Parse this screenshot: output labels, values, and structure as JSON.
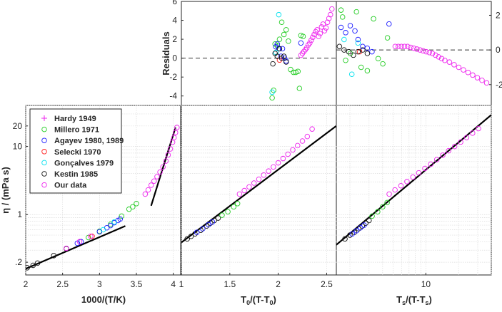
{
  "chart_data": [
    {
      "panel": "residuals-left",
      "type": "scatter",
      "ylabel": "Residuals",
      "ylim": [
        -5,
        6
      ],
      "xlim": [
        2.0,
        4.1
      ],
      "yticks": [
        -4,
        -2,
        0,
        2,
        4,
        6
      ],
      "series": [
        {
          "name": "Millero 1971",
          "color": "#22cc22",
          "x": [
            3.23,
            3.25,
            3.27,
            3.3,
            3.33,
            3.36,
            3.39,
            3.42,
            3.45,
            3.48,
            3.52,
            3.55,
            3.58,
            3.6,
            3.62,
            3.65
          ],
          "y": [
            -4.2,
            -3.4,
            1.5,
            1.3,
            2.0,
            3.8,
            2.5,
            3.0,
            1.8,
            -1.2,
            -1.5,
            -1.5,
            -1.4,
            -3.2,
            2.4,
            2.3
          ]
        },
        {
          "name": "Agayev 1980, 1989",
          "color": "#1a1aff",
          "x": [
            3.28,
            3.3,
            3.32,
            3.35,
            3.37,
            3.4,
            3.42,
            3.62
          ],
          "y": [
            1.2,
            1.5,
            1.0,
            0.2,
            1.0,
            0.0,
            -0.3,
            1.6
          ]
        },
        {
          "name": "Selecki 1970",
          "color": "#ff1a1a",
          "x": [
            3.33
          ],
          "y": [
            -0.2
          ]
        },
        {
          "name": "Gonçalves 1979",
          "color": "#00e0ee",
          "x": [
            3.23,
            3.28,
            3.32
          ],
          "y": [
            -3.6,
            0.6,
            4.6
          ]
        },
        {
          "name": "Kestin 1985",
          "color": "#111111",
          "x": [
            3.24,
            3.27,
            3.3,
            3.33,
            3.36,
            3.39,
            3.42
          ],
          "y": [
            -0.6,
            0.5,
            0.2,
            1.0,
            0.0,
            0.2,
            -0.4
          ]
        },
        {
          "name": "Our data",
          "color": "#ee22ee",
          "x": [
            3.62,
            3.64,
            3.66,
            3.68,
            3.7,
            3.72,
            3.74,
            3.76,
            3.78,
            3.8,
            3.82,
            3.84,
            3.86,
            3.88,
            3.9,
            3.92,
            3.94,
            3.96,
            3.98,
            4.0,
            4.02,
            4.04
          ],
          "y": [
            0.3,
            0.5,
            0.7,
            0.9,
            1.1,
            1.4,
            1.6,
            1.9,
            2.2,
            2.5,
            2.8,
            3.0,
            2.3,
            2.6,
            3.3,
            3.6,
            2.9,
            3.2,
            3.8,
            4.2,
            4.6,
            5.2
          ]
        }
      ]
    },
    {
      "panel": "residuals-right",
      "type": "scatter",
      "ylim": [
        -3.2,
        2.8
      ],
      "xlim": [
        0,
        1
      ],
      "yticks": [
        -2,
        0,
        2
      ],
      "series": [
        {
          "name": "Millero 1971",
          "color": "#22cc22",
          "x": [
            0.03,
            0.04,
            0.06,
            0.09,
            0.13,
            0.16,
            0.2,
            0.24,
            0.27,
            0.3,
            0.33
          ],
          "y": [
            2.3,
            1.9,
            -0.6,
            -0.2,
            2.2,
            -1.0,
            -1.2,
            1.8,
            -0.5,
            -0.8,
            0.7
          ]
        },
        {
          "name": "Agayev 1980, 1989",
          "color": "#1a1aff",
          "x": [
            0.03,
            0.06,
            0.09,
            0.12,
            0.14,
            0.17,
            0.2,
            0.23,
            0.34
          ],
          "y": [
            1.3,
            1.0,
            1.4,
            1.1,
            0.6,
            0.2,
            0.1,
            -0.1,
            1.5
          ]
        },
        {
          "name": "Selecki 1970",
          "color": "#ff1a1a",
          "x": [
            0.15
          ],
          "y": [
            -0.1
          ]
        },
        {
          "name": "Gonçalves 1979",
          "color": "#00e0ee",
          "x": [
            0.05,
            0.1,
            0.14
          ],
          "y": [
            0.6,
            -1.4,
            0.4
          ]
        },
        {
          "name": "Kestin 1985",
          "color": "#111111",
          "x": [
            0.02,
            0.05,
            0.08,
            0.11,
            0.14,
            0.17,
            0.2
          ],
          "y": [
            0.2,
            0.0,
            -0.1,
            -0.3,
            -0.1,
            0.0,
            -0.2
          ]
        },
        {
          "name": "Our data",
          "color": "#ee22ee",
          "x": [
            0.38,
            0.4,
            0.42,
            0.44,
            0.46,
            0.48,
            0.5,
            0.52,
            0.54,
            0.56,
            0.58,
            0.6,
            0.62,
            0.64,
            0.66,
            0.68,
            0.7,
            0.73,
            0.76,
            0.79,
            0.82,
            0.85,
            0.88,
            0.91,
            0.94,
            0.97
          ],
          "y": [
            0.2,
            0.2,
            0.2,
            0.2,
            0.2,
            0.15,
            0.1,
            0.05,
            0.0,
            -0.05,
            -0.1,
            -0.15,
            -0.2,
            -0.3,
            -0.4,
            -0.5,
            -0.6,
            -0.7,
            -0.85,
            -1.0,
            -1.15,
            -1.3,
            -1.45,
            -1.6,
            -1.75,
            -1.9
          ]
        }
      ]
    },
    {
      "panel": "viscosity-arrhenius",
      "type": "scatter",
      "xlabel": "1000/(T/K)",
      "ylabel": "η / (mPa s)",
      "yscale": "log",
      "xlim": [
        2.0,
        4.1
      ],
      "ylim": [
        0.13,
        40
      ],
      "xticks": [
        2,
        2.5,
        3,
        3.5,
        4
      ],
      "xtick_labels": [
        "2",
        "2.5",
        "3",
        "3.5",
        "4"
      ],
      "yticks": [
        0.2,
        1,
        10,
        20
      ],
      "ytick_labels": [
        ".2",
        "1",
        "10",
        "20"
      ],
      "fit_lines": [
        {
          "x": [
            2.0,
            3.35
          ],
          "y": [
            0.16,
            0.68
          ]
        },
        {
          "x": [
            3.7,
            4.03
          ],
          "y": [
            1.35,
            19.0
          ]
        }
      ],
      "series": [
        {
          "name": "Kestin 1985",
          "color": "#111111",
          "x": [
            2.02,
            2.1,
            2.16,
            2.38,
            2.55
          ],
          "y": [
            0.166,
            0.18,
            0.194,
            0.25,
            0.316
          ]
        },
        {
          "name": "Millero 1971",
          "color": "#22cc22",
          "x": [
            2.85,
            3.0,
            3.15,
            3.3,
            3.4,
            3.45,
            3.5
          ],
          "y": [
            0.46,
            0.57,
            0.72,
            0.95,
            1.2,
            1.3,
            1.45
          ]
        },
        {
          "name": "Agayev 1980, 1989",
          "color": "#1a1aff",
          "x": [
            2.7,
            2.75,
            3.0,
            3.1,
            3.15,
            3.2,
            3.25,
            3.28
          ],
          "y": [
            0.38,
            0.4,
            0.56,
            0.64,
            0.69,
            0.76,
            0.82,
            0.86
          ]
        },
        {
          "name": "Selecki 1970",
          "color": "#ff1a1a",
          "x": [
            2.9
          ],
          "y": [
            0.48
          ]
        },
        {
          "name": "Gonçalves 1979",
          "color": "#00e0ee",
          "x": [
            3.05,
            3.2
          ],
          "y": [
            0.6,
            0.78
          ]
        },
        {
          "name": "Our data",
          "color": "#ee22ee",
          "x": [
            2.55,
            2.73,
            2.88,
            3.62,
            3.66,
            3.7,
            3.74,
            3.78,
            3.82,
            3.86,
            3.9,
            3.93,
            3.96,
            3.99,
            4.01,
            4.03,
            4.05
          ],
          "y": [
            0.32,
            0.4,
            0.48,
            2.0,
            2.3,
            2.7,
            3.1,
            3.6,
            4.2,
            5.0,
            6.1,
            7.5,
            9.2,
            11.5,
            13.5,
            16.0,
            19.0
          ]
        }
      ],
      "legend": {
        "placement": "top-left",
        "entries": [
          {
            "label": "Hardy 1949",
            "color": "#ee22ee",
            "marker": "+"
          },
          {
            "label": "Millero 1971",
            "color": "#22cc22",
            "marker": "o"
          },
          {
            "label": "Agayev 1980, 1989",
            "color": "#1a1aff",
            "marker": "o"
          },
          {
            "label": "Selecki 1970",
            "color": "#ff1a1a",
            "marker": "o"
          },
          {
            "label": "Gonçalves 1979",
            "color": "#00e0ee",
            "marker": "o"
          },
          {
            "label": "Kestin 1985",
            "color": "#111111",
            "marker": "o"
          },
          {
            "label": "Our data",
            "color": "#ee22ee",
            "marker": "o"
          }
        ]
      }
    },
    {
      "panel": "viscosity-t0",
      "type": "scatter",
      "xlabel": "T0/(T-T0)",
      "xlabel_parts": {
        "base": "T",
        "sub": "0",
        "mid": "/(T-T",
        "sub2": "0",
        "end": ")"
      },
      "xlim": [
        1.0,
        2.6
      ],
      "yscale": "log",
      "ylim": [
        0.13,
        40
      ],
      "xticks": [
        1,
        1.5,
        2,
        2.5
      ],
      "xtick_labels": [
        "1",
        "1.5",
        "2",
        "2.5"
      ],
      "fit_lines": [
        {
          "x": [
            1.0,
            2.6
          ],
          "y": [
            0.39,
            20.0
          ]
        }
      ],
      "series": [
        {
          "name": "Kestin 1985",
          "color": "#111111",
          "x": [
            1.06,
            1.1,
            1.14,
            1.2,
            1.26,
            1.3,
            1.34,
            1.38
          ],
          "y": [
            0.44,
            0.48,
            0.52,
            0.59,
            0.68,
            0.75,
            0.82,
            0.89
          ]
        },
        {
          "name": "Agayev 1980, 1989",
          "color": "#1a1aff",
          "x": [
            1.16,
            1.22,
            1.28,
            1.32
          ],
          "y": [
            0.55,
            0.62,
            0.71,
            0.78
          ]
        },
        {
          "name": "Millero 1971",
          "color": "#22cc22",
          "x": [
            1.42,
            1.48,
            1.54,
            1.58
          ],
          "y": [
            0.98,
            1.1,
            1.3,
            1.45
          ]
        },
        {
          "name": "Our data",
          "color": "#ee22ee",
          "x": [
            1.6,
            1.65,
            1.7,
            1.75,
            1.8,
            1.85,
            1.9,
            1.95,
            2.0,
            2.05,
            2.1,
            2.15,
            2.2,
            2.25,
            2.3,
            2.35
          ],
          "y": [
            2.0,
            2.25,
            2.55,
            2.9,
            3.3,
            3.8,
            4.35,
            5.0,
            5.75,
            6.65,
            7.7,
            8.9,
            10.3,
            12.0,
            14.0,
            18.0
          ]
        }
      ]
    },
    {
      "panel": "viscosity-ts",
      "type": "scatter",
      "xlabel": "Ts/(T-Ts)",
      "xlabel_parts": {
        "base": "T",
        "sub": "s",
        "mid": "/(T-T",
        "sub2": "s",
        "end": ")"
      },
      "xscale": "log",
      "xlim": [
        1.5,
        40
      ],
      "yscale": "log",
      "ylim": [
        0.13,
        40
      ],
      "xticks": [
        10
      ],
      "xtick_labels": [
        "10"
      ],
      "fit_lines": [
        {
          "x": [
            1.5,
            40
          ],
          "y": [
            0.36,
            29.0
          ]
        }
      ],
      "series": [
        {
          "name": "Kestin 1985",
          "color": "#111111",
          "x": [
            1.8,
            2.0,
            2.2,
            2.4,
            2.6,
            2.8,
            3.0
          ],
          "y": [
            0.44,
            0.5,
            0.55,
            0.62,
            0.68,
            0.75,
            0.82
          ]
        },
        {
          "name": "Agayev 1980, 1989",
          "color": "#1a1aff",
          "x": [
            2.1,
            2.3,
            2.5,
            2.7
          ],
          "y": [
            0.52,
            0.58,
            0.64,
            0.7
          ]
        },
        {
          "name": "Millero 1971",
          "color": "#22cc22",
          "x": [
            3.2,
            3.6,
            4.0,
            4.4
          ],
          "y": [
            0.95,
            1.1,
            1.3,
            1.5
          ]
        },
        {
          "name": "Our data",
          "color": "#ee22ee",
          "x": [
            4.6,
            5.2,
            5.9,
            6.7,
            7.6,
            8.6,
            9.8,
            11.1,
            12.6,
            14.3,
            16.2,
            18.4,
            20.9,
            23.7,
            26.9,
            30.5
          ],
          "y": [
            2.0,
            2.3,
            2.65,
            3.05,
            3.55,
            4.1,
            4.75,
            5.5,
            6.4,
            7.45,
            8.65,
            10.0,
            11.6,
            13.5,
            15.7,
            18.3
          ]
        }
      ]
    }
  ]
}
